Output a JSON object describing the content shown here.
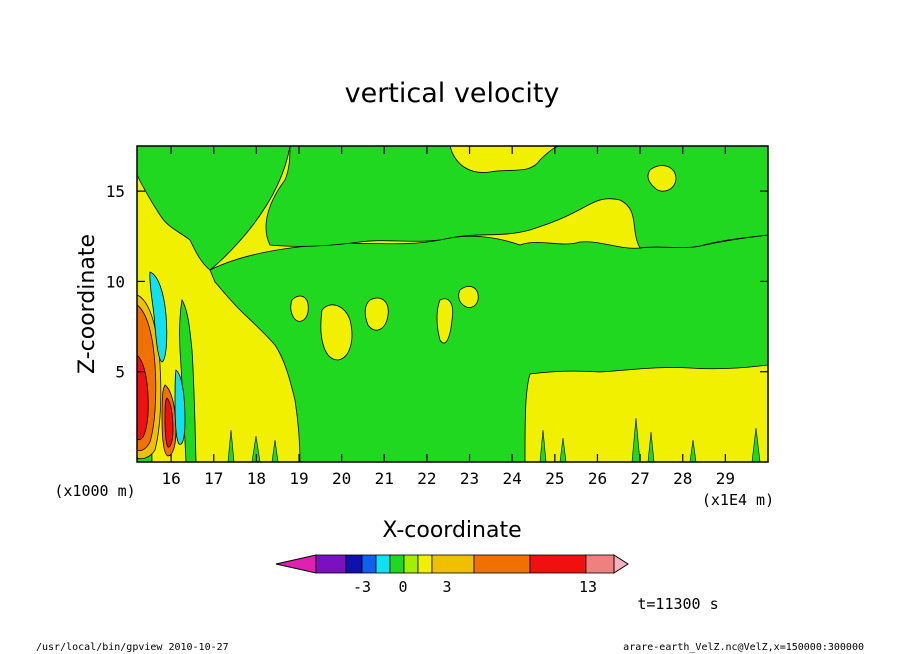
{
  "chart_data": {
    "type": "heatmap",
    "title": "vertical velocity",
    "xlabel": "X-coordinate",
    "ylabel": "Z-coordinate",
    "x_unit_left": "(x1000 m)",
    "x_unit_right": "(x1E4 m)",
    "xlim": [
      15.2,
      30.0
    ],
    "ylim": [
      0.0,
      17.5
    ],
    "x_ticks": [
      "16",
      "17",
      "18",
      "19",
      "20",
      "21",
      "22",
      "23",
      "24",
      "25",
      "26",
      "27",
      "28",
      "29"
    ],
    "y_ticks": [
      "5",
      "10",
      "15"
    ],
    "y_tick_values": [
      5,
      10,
      15
    ],
    "time_label": "t=11300 s",
    "colorbar": {
      "labels": [
        "-3",
        "0",
        "3",
        "13"
      ],
      "colors": [
        "#e020b0",
        "#7a10c0",
        "#1010b0",
        "#1060f0",
        "#10e0f0",
        "#20d820",
        "#a0f000",
        "#f0f000",
        "#f0c000",
        "#f07000",
        "#f01010",
        "#f08080",
        "#f8b0c0"
      ]
    },
    "regions": [
      {
        "level": "0..1 (yellow)",
        "color": "#f0f000",
        "description": "background"
      },
      {
        "level": "-1..0 (green)",
        "color": "#20d820",
        "description": "broad band z 5-13 and upper left"
      },
      {
        "level": "3..8 (orange)",
        "color": "#f07000",
        "description": "updraft core x 15.2-15.5, z 1-8"
      },
      {
        "level": "8..12 (red)",
        "color": "#f01010",
        "description": "updraft peak x 15.3, z 2-5"
      },
      {
        "level": "-3..-2 (cyan)",
        "color": "#10e0f0",
        "description": "downdraft x 15.4-15.8, z 1-10"
      }
    ]
  },
  "footer": {
    "left": "/usr/local/bin/gpview   2010-10-27",
    "right": "arare-earth_VelZ.nc@VelZ,x=150000:300000"
  }
}
